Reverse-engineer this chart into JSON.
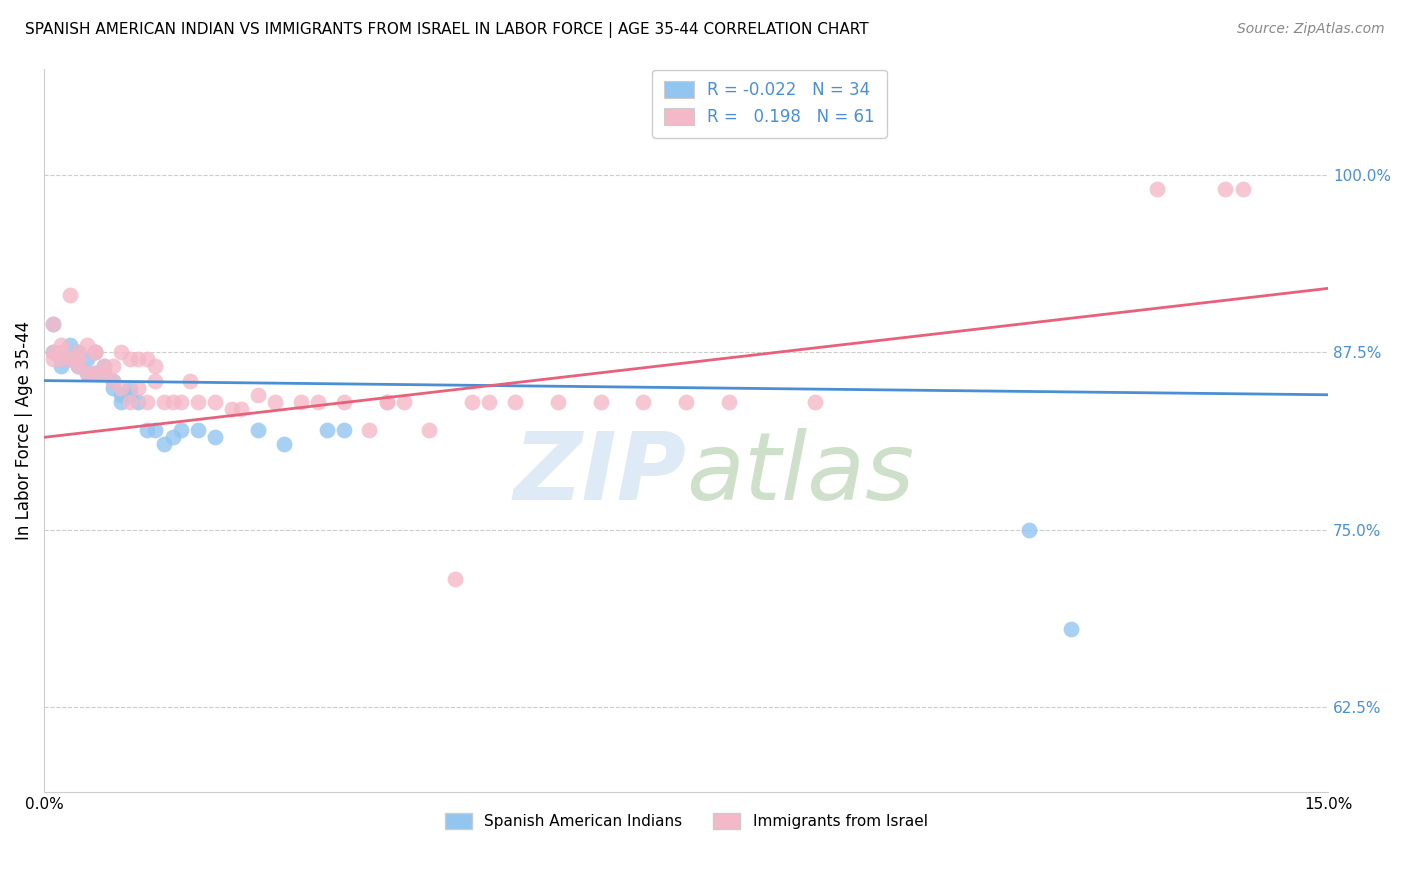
{
  "title": "SPANISH AMERICAN INDIAN VS IMMIGRANTS FROM ISRAEL IN LABOR FORCE | AGE 35-44 CORRELATION CHART",
  "source": "Source: ZipAtlas.com",
  "ylabel": "In Labor Force | Age 35-44",
  "yticks": [
    0.625,
    0.75,
    0.875,
    1.0
  ],
  "ytick_labels": [
    "62.5%",
    "75.0%",
    "87.5%",
    "100.0%"
  ],
  "xmin": 0.0,
  "xmax": 0.15,
  "ymin": 0.565,
  "ymax": 1.075,
  "blue_color": "#92C5F0",
  "pink_color": "#F5B8C8",
  "blue_line_color": "#4A8FD4",
  "pink_line_color": "#E8607A",
  "blue_label": "Spanish American Indians",
  "pink_label": "Immigrants from Israel",
  "blue_R": -0.022,
  "blue_N": 34,
  "pink_R": 0.198,
  "pink_N": 61,
  "blue_scatter_x": [
    0.001,
    0.001,
    0.002,
    0.002,
    0.003,
    0.003,
    0.004,
    0.004,
    0.005,
    0.005,
    0.006,
    0.006,
    0.007,
    0.007,
    0.008,
    0.008,
    0.009,
    0.009,
    0.01,
    0.01,
    0.011,
    0.012,
    0.013,
    0.014,
    0.015,
    0.016,
    0.018,
    0.02,
    0.025,
    0.028,
    0.033,
    0.035,
    0.115,
    0.12
  ],
  "blue_scatter_y": [
    0.895,
    0.875,
    0.87,
    0.865,
    0.88,
    0.87,
    0.875,
    0.865,
    0.87,
    0.86,
    0.875,
    0.86,
    0.86,
    0.865,
    0.855,
    0.85,
    0.845,
    0.84,
    0.845,
    0.85,
    0.84,
    0.82,
    0.82,
    0.81,
    0.815,
    0.82,
    0.82,
    0.815,
    0.82,
    0.81,
    0.82,
    0.82,
    0.75,
    0.68
  ],
  "pink_scatter_x": [
    0.001,
    0.001,
    0.001,
    0.002,
    0.002,
    0.002,
    0.003,
    0.003,
    0.004,
    0.004,
    0.004,
    0.005,
    0.005,
    0.006,
    0.006,
    0.006,
    0.007,
    0.007,
    0.008,
    0.008,
    0.009,
    0.009,
    0.01,
    0.01,
    0.011,
    0.011,
    0.012,
    0.012,
    0.013,
    0.013,
    0.014,
    0.015,
    0.016,
    0.017,
    0.018,
    0.02,
    0.022,
    0.023,
    0.025,
    0.027,
    0.03,
    0.032,
    0.035,
    0.038,
    0.04,
    0.04,
    0.042,
    0.045,
    0.048,
    0.05,
    0.052,
    0.055,
    0.06,
    0.065,
    0.07,
    0.075,
    0.08,
    0.09,
    0.13,
    0.138,
    0.14
  ],
  "pink_scatter_y": [
    0.895,
    0.875,
    0.87,
    0.88,
    0.87,
    0.875,
    0.915,
    0.87,
    0.875,
    0.865,
    0.87,
    0.86,
    0.88,
    0.875,
    0.86,
    0.875,
    0.86,
    0.865,
    0.865,
    0.855,
    0.85,
    0.875,
    0.84,
    0.87,
    0.85,
    0.87,
    0.84,
    0.87,
    0.865,
    0.855,
    0.84,
    0.84,
    0.84,
    0.855,
    0.84,
    0.84,
    0.835,
    0.835,
    0.845,
    0.84,
    0.84,
    0.84,
    0.84,
    0.82,
    0.84,
    0.84,
    0.84,
    0.82,
    0.715,
    0.84,
    0.84,
    0.84,
    0.84,
    0.84,
    0.84,
    0.84,
    0.84,
    0.84,
    0.99,
    0.99,
    0.99
  ]
}
